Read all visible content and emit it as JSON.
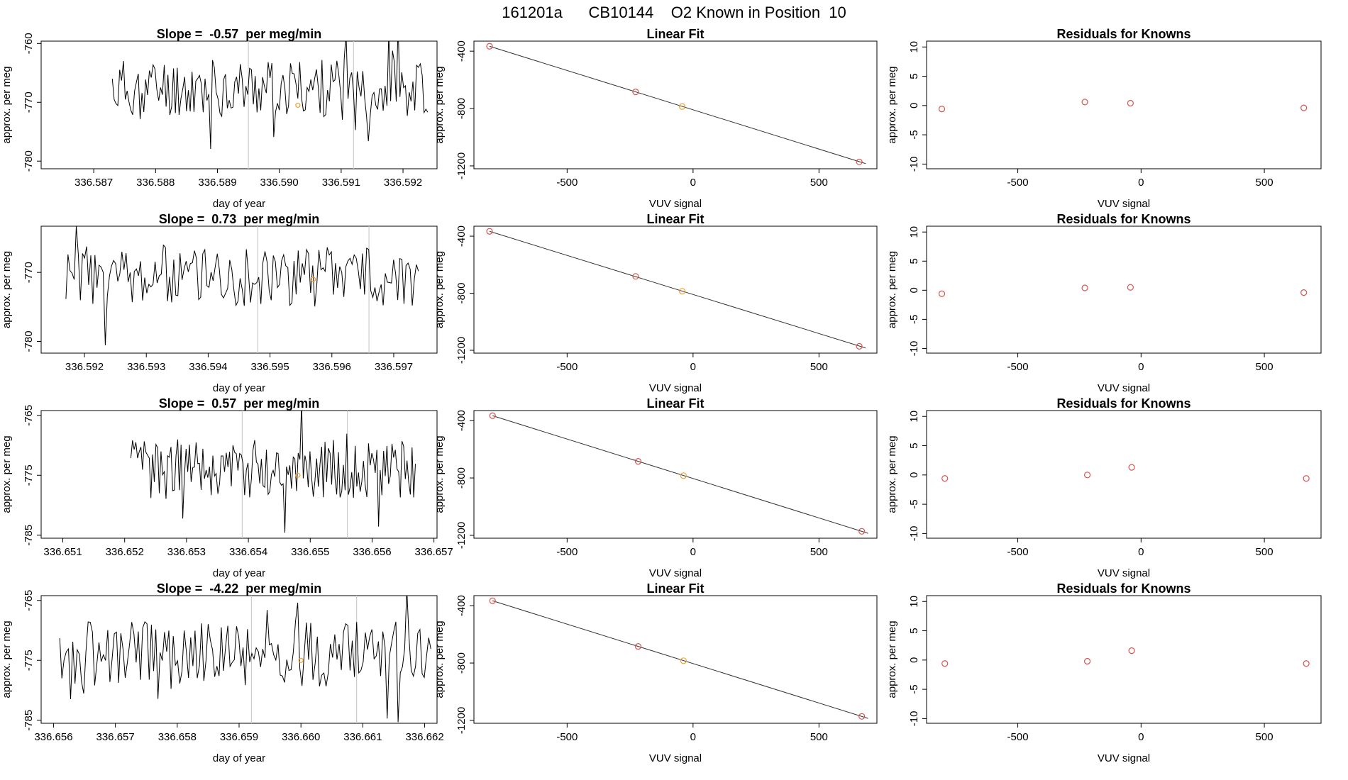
{
  "page_title": "161201a      CB10144    O2 Known in Position  10",
  "chart_data": [
    {
      "type": "line",
      "row": 0,
      "title": "Slope =  -0.57  per meg/min",
      "xlabel": "day of year",
      "ylabel": "approx. per meg",
      "xlim": [
        336.58615,
        336.59255
      ],
      "ylim": [
        -781.3,
        -759.6
      ],
      "xticks": [
        "336.587",
        "336.588",
        "336.589",
        "336.590",
        "336.591",
        "336.592"
      ],
      "yticks": [
        "-760",
        "-770",
        "-780"
      ],
      "x_start": 336.5873,
      "x_end": 336.5924,
      "baseline": -767.5,
      "amplitude": 5,
      "seed": 11,
      "vlines": [
        336.5895,
        336.5912
      ],
      "orange_point": [
        336.5903,
        -770.5
      ]
    },
    {
      "type": "line",
      "row": 1,
      "title": "Slope =  0.73  per meg/min",
      "xlabel": "day of year",
      "ylabel": "approx. per meg",
      "xlim": [
        336.5913,
        336.5977
      ],
      "ylim": [
        -781.7,
        -763.3
      ],
      "xticks": [
        "336.592",
        "336.593",
        "336.594",
        "336.595",
        "336.596",
        "336.597"
      ],
      "yticks": [
        "-770",
        "-780"
      ],
      "x_start": 336.5917,
      "x_end": 336.5974,
      "baseline": -770.5,
      "amplitude": 4.5,
      "seed": 23,
      "vlines": [
        336.5948,
        336.5966
      ],
      "orange_point": [
        336.5957,
        -771
      ]
    },
    {
      "type": "line",
      "row": 2,
      "title": "Slope =  0.57  per meg/min",
      "xlabel": "day of year",
      "ylabel": "approx. per meg",
      "xlim": [
        336.65065,
        336.65705
      ],
      "ylim": [
        -785.5,
        -764.2
      ],
      "xticks": [
        "336.651",
        "336.652",
        "336.653",
        "336.654",
        "336.655",
        "336.656",
        "336.657"
      ],
      "yticks": [
        "-765",
        "-775",
        "-785"
      ],
      "x_start": 336.6521,
      "x_end": 336.6567,
      "baseline": -774,
      "amplitude": 5,
      "seed": 37,
      "vlines": [
        336.6539,
        336.6556
      ],
      "orange_point": [
        336.6548,
        -775
      ]
    },
    {
      "type": "line",
      "row": 3,
      "title": "Slope =  -4.22  per meg/min",
      "xlabel": "day of year",
      "ylabel": "approx. per meg",
      "xlim": [
        336.6558,
        336.6622
      ],
      "ylim": [
        -785.5,
        -764.2
      ],
      "xticks": [
        "336.656",
        "336.657",
        "336.658",
        "336.659",
        "336.660",
        "336.661",
        "336.662"
      ],
      "yticks": [
        "-765",
        "-775",
        "-785"
      ],
      "x_start": 336.6561,
      "x_end": 336.6621,
      "baseline": -774,
      "amplitude": 5.5,
      "seed": 53,
      "vlines": [
        336.6592,
        336.6609
      ],
      "orange_point": [
        336.66,
        -775
      ]
    },
    {
      "type": "scatter",
      "row": 0,
      "title": "Linear Fit",
      "xlabel": "VUV signal",
      "ylabel": "approx. per meg",
      "xlim": [
        -870,
        730
      ],
      "ylim": [
        -1220,
        -330
      ],
      "xticks": [
        "-500",
        "0",
        "500"
      ],
      "yticks": [
        "-400",
        "-800",
        "-1200"
      ],
      "points": [
        {
          "x": -808,
          "y": -366
        },
        {
          "x": -228,
          "y": -684
        },
        {
          "x": -43,
          "y": -786
        },
        {
          "x": 660,
          "y": -1172
        }
      ],
      "highlight_index": 2,
      "fit_line": [
        [
          -808,
          -366
        ],
        [
          685,
          -1184
        ]
      ]
    },
    {
      "type": "scatter",
      "row": 1,
      "title": "Linear Fit",
      "xlabel": "VUV signal",
      "ylabel": "approx. per meg",
      "xlim": [
        -870,
        730
      ],
      "ylim": [
        -1220,
        -330
      ],
      "xticks": [
        "-500",
        "0",
        "500"
      ],
      "yticks": [
        "-400",
        "-800",
        "-1200"
      ],
      "points": [
        {
          "x": -808,
          "y": -366
        },
        {
          "x": -228,
          "y": -682
        },
        {
          "x": -43,
          "y": -786
        },
        {
          "x": 660,
          "y": -1172
        }
      ],
      "highlight_index": 2,
      "fit_line": [
        [
          -808,
          -366
        ],
        [
          685,
          -1184
        ]
      ]
    },
    {
      "type": "scatter",
      "row": 2,
      "title": "Linear Fit",
      "xlabel": "VUV signal",
      "ylabel": "approx. per meg",
      "xlim": [
        -870,
        730
      ],
      "ylim": [
        -1220,
        -330
      ],
      "xticks": [
        "-500",
        "0",
        "500"
      ],
      "yticks": [
        "-400",
        "-800",
        "-1200"
      ],
      "points": [
        {
          "x": -796,
          "y": -366
        },
        {
          "x": -218,
          "y": -684
        },
        {
          "x": -38,
          "y": -784
        },
        {
          "x": 670,
          "y": -1172
        }
      ],
      "highlight_index": 2,
      "fit_line": [
        [
          -796,
          -366
        ],
        [
          695,
          -1186
        ]
      ]
    },
    {
      "type": "scatter",
      "row": 3,
      "title": "Linear Fit",
      "xlabel": "VUV signal",
      "ylabel": "approx. per meg",
      "xlim": [
        -870,
        730
      ],
      "ylim": [
        -1220,
        -330
      ],
      "xticks": [
        "-500",
        "0",
        "500"
      ],
      "yticks": [
        "-400",
        "-800",
        "-1200"
      ],
      "points": [
        {
          "x": -796,
          "y": -366
        },
        {
          "x": -218,
          "y": -684
        },
        {
          "x": -38,
          "y": -784
        },
        {
          "x": 670,
          "y": -1172
        }
      ],
      "highlight_index": 2,
      "fit_line": [
        [
          -796,
          -366
        ],
        [
          695,
          -1186
        ]
      ]
    },
    {
      "type": "scatter",
      "row": 0,
      "title": "Residuals for Knowns",
      "xlabel": "VUV signal",
      "ylabel": "approx. per meg",
      "xlim": [
        -870,
        730
      ],
      "ylim": [
        -10.8,
        11
      ],
      "xticks": [
        "-500",
        "0",
        "500"
      ],
      "yticks": [
        "-10",
        "-5",
        "0",
        "5",
        "10"
      ],
      "points": [
        {
          "x": -808,
          "y": -0.6
        },
        {
          "x": -228,
          "y": 0.6
        },
        {
          "x": -43,
          "y": 0.4
        },
        {
          "x": 660,
          "y": -0.4
        }
      ]
    },
    {
      "type": "scatter",
      "row": 1,
      "title": "Residuals for Knowns",
      "xlabel": "VUV signal",
      "ylabel": "approx. per meg",
      "xlim": [
        -870,
        730
      ],
      "ylim": [
        -10.8,
        11
      ],
      "xticks": [
        "-500",
        "0",
        "500"
      ],
      "yticks": [
        "-10",
        "-5",
        "0",
        "5",
        "10"
      ],
      "points": [
        {
          "x": -808,
          "y": -0.6
        },
        {
          "x": -228,
          "y": 0.4
        },
        {
          "x": -43,
          "y": 0.5
        },
        {
          "x": 660,
          "y": -0.4
        }
      ]
    },
    {
      "type": "scatter",
      "row": 2,
      "title": "Residuals for Knowns",
      "xlabel": "VUV signal",
      "ylabel": "approx. per meg",
      "xlim": [
        -870,
        730
      ],
      "ylim": [
        -10.8,
        11
      ],
      "xticks": [
        "-500",
        "0",
        "500"
      ],
      "yticks": [
        "-10",
        "-5",
        "0",
        "5",
        "10"
      ],
      "points": [
        {
          "x": -796,
          "y": -0.6
        },
        {
          "x": -218,
          "y": 0.0
        },
        {
          "x": -38,
          "y": 1.3
        },
        {
          "x": 670,
          "y": -0.6
        }
      ]
    },
    {
      "type": "scatter",
      "row": 3,
      "title": "Residuals for Knowns",
      "xlabel": "VUV signal",
      "ylabel": "approx. per meg",
      "xlim": [
        -870,
        730
      ],
      "ylim": [
        -10.8,
        11
      ],
      "xticks": [
        "-500",
        "0",
        "500"
      ],
      "yticks": [
        "-10",
        "-5",
        "0",
        "5",
        "10"
      ],
      "points": [
        {
          "x": -796,
          "y": -0.6
        },
        {
          "x": -218,
          "y": -0.2
        },
        {
          "x": -38,
          "y": 1.6
        },
        {
          "x": 670,
          "y": -0.6
        }
      ]
    }
  ],
  "colors": {
    "line": "#000000",
    "vline": "#cccccc",
    "marker": "#d9534f",
    "highlight": "#f0a030",
    "axis": "#000000",
    "fit": "#333333"
  }
}
